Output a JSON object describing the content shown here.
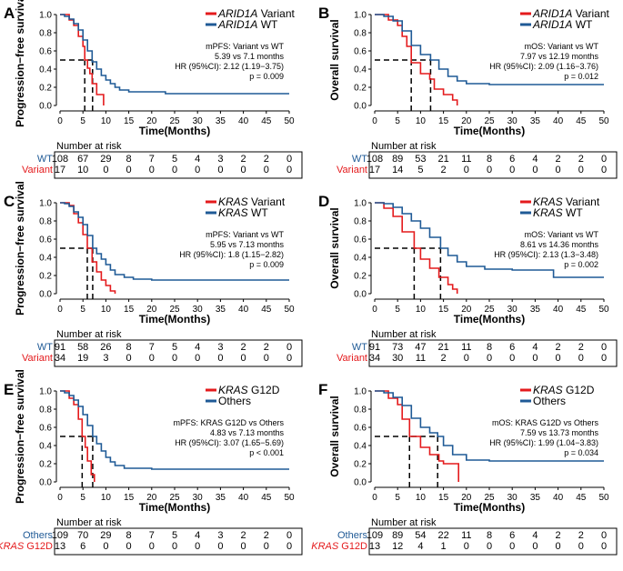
{
  "colors": {
    "variant": "#e41a1c",
    "wt": "#1f5a96",
    "axis": "#000000",
    "box": "#000000"
  },
  "chart_data": [
    {
      "letter": "A",
      "type": "line",
      "ylabel": "Progression−free survival",
      "xlabel": "Time(Months)",
      "xlim": [
        0,
        50
      ],
      "ylim": [
        0,
        1
      ],
      "xticks": [
        "0",
        "5",
        "10",
        "15",
        "20",
        "25",
        "30",
        "35",
        "40",
        "45",
        "50"
      ],
      "yticks": [
        "0.0",
        "0.2",
        "0.4",
        "0.6",
        "0.8",
        "1.0"
      ],
      "legend": [
        {
          "gene": "ARID1A",
          "suffix": " Variant",
          "color": "variant"
        },
        {
          "gene": "ARID1A",
          "suffix": " WT",
          "color": "wt"
        }
      ],
      "annotations": [
        "mPFS: Variant vs WT",
        "5.39 vs 7.1 months",
        "HR (95%CI): 2.12 (1.19−3.75)",
        "p = 0.009"
      ],
      "medians": [
        5.39,
        7.1
      ],
      "series": [
        {
          "name": "Variant",
          "color": "variant",
          "x": [
            0,
            2,
            3,
            4,
            5,
            5.4,
            6,
            6.5,
            7,
            8,
            9.5
          ],
          "y": [
            1,
            0.94,
            0.88,
            0.76,
            0.65,
            0.5,
            0.41,
            0.35,
            0.24,
            0.12,
            0
          ]
        },
        {
          "name": "WT",
          "color": "wt",
          "x": [
            0,
            1,
            2,
            3,
            4,
            5,
            6,
            7,
            8,
            9,
            10,
            11,
            12,
            13,
            15,
            23,
            50
          ],
          "y": [
            1,
            0.98,
            0.95,
            0.9,
            0.83,
            0.72,
            0.6,
            0.48,
            0.4,
            0.33,
            0.28,
            0.24,
            0.2,
            0.17,
            0.15,
            0.13,
            0.13
          ]
        }
      ],
      "risk": {
        "title": "Number at risk",
        "rows": [
          {
            "label": "WT",
            "color": "wt",
            "values": [
              "108",
              "67",
              "29",
              "8",
              "7",
              "5",
              "4",
              "3",
              "2",
              "2",
              "0"
            ]
          },
          {
            "label": "Variant",
            "color": "variant",
            "values": [
              "17",
              "10",
              "0",
              "0",
              "0",
              "0",
              "0",
              "0",
              "0",
              "0",
              "0"
            ]
          }
        ]
      }
    },
    {
      "letter": "B",
      "type": "line",
      "ylabel": "Overall survival",
      "xlabel": "Time(Months)",
      "xlim": [
        0,
        50
      ],
      "ylim": [
        0,
        1
      ],
      "xticks": [
        "0",
        "5",
        "10",
        "15",
        "20",
        "25",
        "30",
        "35",
        "40",
        "45",
        "50"
      ],
      "yticks": [
        "0.0",
        "0.2",
        "0.4",
        "0.6",
        "0.8",
        "1.0"
      ],
      "legend": [
        {
          "gene": "ARID1A",
          "suffix": " Variant",
          "color": "variant"
        },
        {
          "gene": "ARID1A",
          "suffix": " WT",
          "color": "wt"
        }
      ],
      "annotations": [
        "mOS: Variant vs WT",
        "7.97 vs 12.19 months",
        "HR (95%CI): 2.09 (1.16−3.76)",
        "p = 0.012"
      ],
      "medians": [
        7.97,
        12.19
      ],
      "series": [
        {
          "name": "Variant",
          "color": "variant",
          "x": [
            0,
            3,
            5,
            6,
            7,
            7.97,
            10,
            12,
            13,
            15,
            17,
            18
          ],
          "y": [
            1,
            0.94,
            0.88,
            0.76,
            0.65,
            0.47,
            0.35,
            0.29,
            0.18,
            0.12,
            0.06,
            0
          ]
        },
        {
          "name": "WT",
          "color": "wt",
          "x": [
            0,
            2,
            4,
            6,
            8,
            10,
            12.19,
            14,
            16,
            18,
            20,
            25,
            40,
            50
          ],
          "y": [
            1,
            0.98,
            0.93,
            0.82,
            0.66,
            0.56,
            0.5,
            0.4,
            0.32,
            0.27,
            0.24,
            0.23,
            0.23,
            0.23
          ]
        }
      ],
      "risk": {
        "title": "Number at risk",
        "rows": [
          {
            "label": "WT",
            "color": "wt",
            "values": [
              "108",
              "89",
              "53",
              "21",
              "11",
              "8",
              "6",
              "4",
              "2",
              "2",
              "0"
            ]
          },
          {
            "label": "Variant",
            "color": "variant",
            "values": [
              "17",
              "14",
              "5",
              "2",
              "0",
              "0",
              "0",
              "0",
              "0",
              "0",
              "0"
            ]
          }
        ]
      }
    },
    {
      "letter": "C",
      "type": "line",
      "ylabel": "Progression−free survival",
      "xlabel": "Time(Months)",
      "xlim": [
        0,
        50
      ],
      "ylim": [
        0,
        1
      ],
      "xticks": [
        "0",
        "5",
        "10",
        "15",
        "20",
        "25",
        "30",
        "35",
        "40",
        "45",
        "50"
      ],
      "yticks": [
        "0.0",
        "0.2",
        "0.4",
        "0.6",
        "0.8",
        "1.0"
      ],
      "legend": [
        {
          "gene": "KRAS",
          "suffix": " Variant",
          "color": "variant"
        },
        {
          "gene": "KRAS",
          "suffix": " WT",
          "color": "wt"
        }
      ],
      "annotations": [
        "mPFS: Variant vs WT",
        "5.95 vs 7.13 months",
        "HR (95%CI): 1.8 (1.15−2.82)",
        "p = 0.009"
      ],
      "medians": [
        5.95,
        7.13
      ],
      "series": [
        {
          "name": "Variant",
          "color": "variant",
          "x": [
            0,
            2,
            3,
            4,
            5,
            5.95,
            7,
            8,
            9,
            10,
            11,
            12
          ],
          "y": [
            1,
            0.97,
            0.88,
            0.78,
            0.65,
            0.5,
            0.35,
            0.24,
            0.15,
            0.09,
            0.03,
            0
          ]
        },
        {
          "name": "WT",
          "color": "wt",
          "x": [
            0,
            1,
            2,
            3,
            4,
            5,
            6,
            7.13,
            8,
            9,
            10,
            11,
            12,
            14,
            16,
            20,
            30,
            50
          ],
          "y": [
            1,
            0.99,
            0.96,
            0.9,
            0.84,
            0.76,
            0.64,
            0.5,
            0.44,
            0.38,
            0.32,
            0.26,
            0.21,
            0.18,
            0.16,
            0.15,
            0.15,
            0.15
          ]
        }
      ],
      "risk": {
        "title": "Number at risk",
        "rows": [
          {
            "label": "WT",
            "color": "wt",
            "values": [
              "91",
              "58",
              "26",
              "8",
              "7",
              "5",
              "4",
              "3",
              "2",
              "2",
              "0"
            ]
          },
          {
            "label": "Variant",
            "color": "variant",
            "values": [
              "34",
              "19",
              "3",
              "0",
              "0",
              "0",
              "0",
              "0",
              "0",
              "0",
              "0"
            ]
          }
        ]
      }
    },
    {
      "letter": "D",
      "type": "line",
      "ylabel": "Overall survival",
      "xlabel": "Time(Months)",
      "xlim": [
        0,
        50
      ],
      "ylim": [
        0,
        1
      ],
      "xticks": [
        "0",
        "5",
        "10",
        "15",
        "20",
        "25",
        "30",
        "35",
        "40",
        "45",
        "50"
      ],
      "yticks": [
        "0.0",
        "0.2",
        "0.4",
        "0.6",
        "0.8",
        "1.0"
      ],
      "legend": [
        {
          "gene": "KRAS",
          "suffix": " Variant",
          "color": "variant"
        },
        {
          "gene": "KRAS",
          "suffix": " WT",
          "color": "wt"
        }
      ],
      "annotations": [
        "mOS: Variant vs WT",
        "8.61 vs 14.36 months",
        "HR (95%CI): 2.13 (1.3−3.48)",
        "p = 0.002"
      ],
      "medians": [
        8.61,
        14.36
      ],
      "series": [
        {
          "name": "Variant",
          "color": "variant",
          "x": [
            0,
            2,
            4,
            6,
            8.61,
            10,
            12,
            14,
            16,
            17,
            18
          ],
          "y": [
            1,
            0.94,
            0.85,
            0.68,
            0.5,
            0.38,
            0.28,
            0.18,
            0.1,
            0.05,
            0
          ]
        },
        {
          "name": "WT",
          "color": "wt",
          "x": [
            0,
            2,
            4,
            6,
            8,
            10,
            12,
            14.36,
            16,
            18,
            20,
            24,
            30,
            39,
            50
          ],
          "y": [
            1,
            0.99,
            0.95,
            0.88,
            0.8,
            0.72,
            0.62,
            0.5,
            0.42,
            0.35,
            0.3,
            0.27,
            0.26,
            0.18,
            0.18
          ]
        }
      ],
      "risk": {
        "title": "Number at risk",
        "rows": [
          {
            "label": "WT",
            "color": "wt",
            "values": [
              "91",
              "73",
              "47",
              "21",
              "11",
              "8",
              "6",
              "4",
              "2",
              "2",
              "0"
            ]
          },
          {
            "label": "Variant",
            "color": "variant",
            "values": [
              "34",
              "30",
              "11",
              "2",
              "0",
              "0",
              "0",
              "0",
              "0",
              "0",
              "0"
            ]
          }
        ]
      }
    },
    {
      "letter": "E",
      "type": "line",
      "ylabel": "Progression−free survival",
      "xlabel": "Time(Months)",
      "xlim": [
        0,
        50
      ],
      "ylim": [
        0,
        1
      ],
      "xticks": [
        "0",
        "5",
        "10",
        "15",
        "20",
        "25",
        "30",
        "35",
        "40",
        "45",
        "50"
      ],
      "yticks": [
        "0.0",
        "0.2",
        "0.4",
        "0.6",
        "0.8",
        "1.0"
      ],
      "legend": [
        {
          "gene": "KRAS",
          "suffix": " G12D",
          "color": "variant"
        },
        {
          "gene": "",
          "suffix": "Others",
          "color": "wt"
        }
      ],
      "annotations": [
        "mPFS: KRAS G12D vs Others",
        "4.83 vs 7.13 months",
        "HR (95%CI): 3.07 (1.65−5.69)",
        "p < 0.001"
      ],
      "medians": [
        4.83,
        7.13
      ],
      "series": [
        {
          "name": "G12D",
          "color": "variant",
          "x": [
            0,
            2,
            3,
            4,
            4.83,
            5.5,
            6,
            6.8,
            7.5
          ],
          "y": [
            1,
            0.92,
            0.85,
            0.69,
            0.5,
            0.38,
            0.23,
            0.08,
            0
          ]
        },
        {
          "name": "Others",
          "color": "wt",
          "x": [
            0,
            1,
            2,
            3,
            4,
            5,
            6,
            7.13,
            8,
            9,
            10,
            11,
            12,
            14,
            20,
            50
          ],
          "y": [
            1,
            0.98,
            0.95,
            0.9,
            0.83,
            0.74,
            0.62,
            0.5,
            0.42,
            0.34,
            0.27,
            0.22,
            0.18,
            0.15,
            0.14,
            0.14
          ]
        }
      ],
      "risk": {
        "title": "Number at risk",
        "rows": [
          {
            "label": "Others",
            "color": "wt",
            "values": [
              "109",
              "70",
              "29",
              "8",
              "7",
              "5",
              "4",
              "3",
              "2",
              "2",
              "0"
            ]
          },
          {
            "gene": "KRAS",
            "label": " G12D",
            "color": "variant",
            "values": [
              "13",
              "6",
              "0",
              "0",
              "0",
              "0",
              "0",
              "0",
              "0",
              "0",
              "0"
            ]
          }
        ]
      }
    },
    {
      "letter": "F",
      "type": "line",
      "ylabel": "Overall survival",
      "xlabel": "Time(Months)",
      "xlim": [
        0,
        50
      ],
      "ylim": [
        0,
        1
      ],
      "xticks": [
        "0",
        "5",
        "10",
        "15",
        "20",
        "25",
        "30",
        "35",
        "40",
        "45",
        "50"
      ],
      "yticks": [
        "0.0",
        "0.2",
        "0.4",
        "0.6",
        "0.8",
        "1.0"
      ],
      "legend": [
        {
          "gene": "KRAS",
          "suffix": " G12D",
          "color": "variant"
        },
        {
          "gene": "",
          "suffix": "Others",
          "color": "wt"
        }
      ],
      "annotations": [
        "mOS: KRAS G12D vs Others",
        "7.59 vs 13.73 months",
        "HR (95%CI): 1.99 (1.04−3.83)",
        "p = 0.034"
      ],
      "medians": [
        7.59,
        13.73
      ],
      "series": [
        {
          "name": "G12D",
          "color": "variant",
          "x": [
            0,
            3,
            5,
            6,
            7.59,
            10,
            12,
            14,
            15,
            18.3
          ],
          "y": [
            1,
            0.92,
            0.85,
            0.69,
            0.5,
            0.38,
            0.3,
            0.23,
            0.2,
            0
          ]
        },
        {
          "name": "Others",
          "color": "wt",
          "x": [
            0,
            2,
            4,
            6,
            8,
            10,
            12,
            13.73,
            15,
            17,
            20,
            25,
            40,
            50
          ],
          "y": [
            1,
            0.98,
            0.93,
            0.84,
            0.7,
            0.6,
            0.54,
            0.5,
            0.4,
            0.3,
            0.24,
            0.23,
            0.23,
            0.23
          ]
        }
      ],
      "risk": {
        "title": "Number at risk",
        "rows": [
          {
            "label": "Others",
            "color": "wt",
            "values": [
              "109",
              "89",
              "54",
              "22",
              "11",
              "8",
              "6",
              "4",
              "2",
              "2",
              "0"
            ]
          },
          {
            "gene": "KRAS",
            "label": " G12D",
            "color": "variant",
            "values": [
              "13",
              "12",
              "4",
              "1",
              "0",
              "0",
              "0",
              "0",
              "0",
              "0",
              "0"
            ]
          }
        ]
      }
    }
  ]
}
